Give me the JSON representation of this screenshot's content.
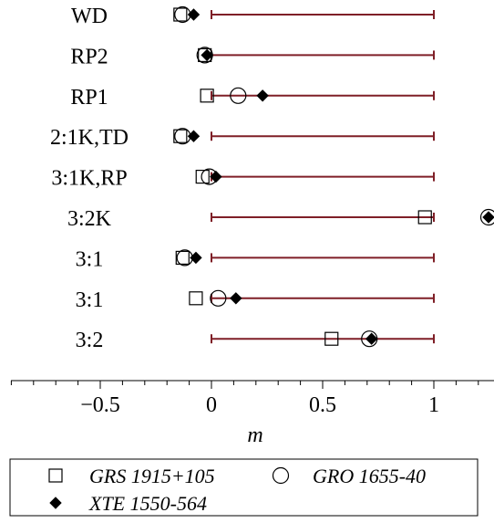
{
  "chart_data": {
    "type": "scatter",
    "title": "",
    "xlabel": "m",
    "ylabel": "",
    "xlim": [
      -0.9,
      1.25
    ],
    "x_ticks": [
      -0.5,
      0,
      0.5,
      1
    ],
    "x_tick_labels": [
      "−0.5",
      "0",
      "0.5",
      "1"
    ],
    "grid": false,
    "legend_position": "bottom",
    "interval": {
      "from": 0,
      "to": 1,
      "color": "#7f1f27"
    },
    "categories": [
      "WD",
      "RP2",
      "RP1",
      "2:1K,TD",
      "3:1K,RP",
      "3:2K",
      "3:1",
      "3:1",
      "3:2"
    ],
    "series": [
      {
        "name": "GRS 1915+105",
        "marker": "square",
        "values": [
          -0.14,
          -0.03,
          -0.02,
          -0.14,
          -0.04,
          0.96,
          -0.13,
          -0.07,
          0.54
        ]
      },
      {
        "name": "GRO 1655-40",
        "marker": "circle",
        "values": [
          -0.13,
          -0.03,
          0.12,
          -0.13,
          -0.01,
          1.25,
          -0.12,
          0.03,
          0.71
        ]
      },
      {
        "name": "XTE 1550-564",
        "marker": "diamond",
        "values": [
          -0.08,
          -0.02,
          0.23,
          -0.08,
          0.02,
          1.25,
          -0.07,
          0.11,
          0.72
        ]
      }
    ]
  }
}
